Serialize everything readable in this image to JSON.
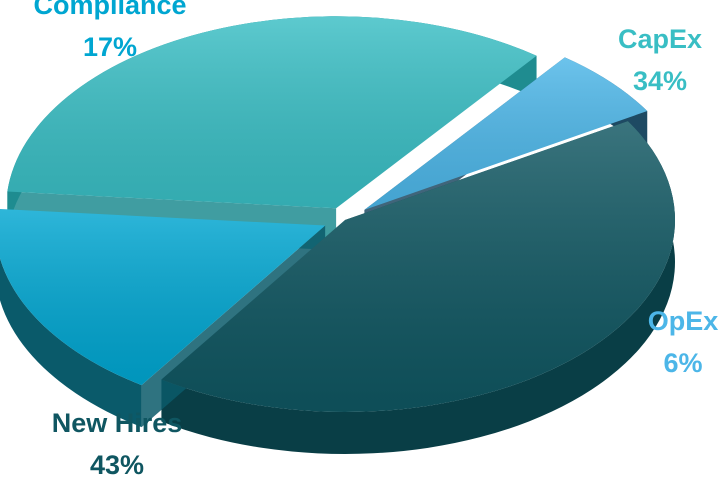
{
  "chart_data": {
    "type": "pie",
    "title": "",
    "slices": [
      {
        "label": "CapEx",
        "value": 34,
        "pct_label": "34%",
        "color": "#39bec4",
        "side_color": "#1f8c90",
        "label_color": "#39bec4"
      },
      {
        "label": "OpEx",
        "value": 6,
        "pct_label": "6%",
        "color": "#4cb6e8",
        "side_color": "#1e4a63",
        "label_color": "#4cb6e8"
      },
      {
        "label": "New Hires",
        "value": 43,
        "pct_label": "43%",
        "color": "#0f5661",
        "side_color": "#093e46",
        "label_color": "#0f5661"
      },
      {
        "label": "Compliance",
        "value": 17,
        "pct_label": "17%",
        "color": "#00a6d1",
        "side_color": "#0a5a6a",
        "label_color": "#00a6d1"
      }
    ]
  }
}
